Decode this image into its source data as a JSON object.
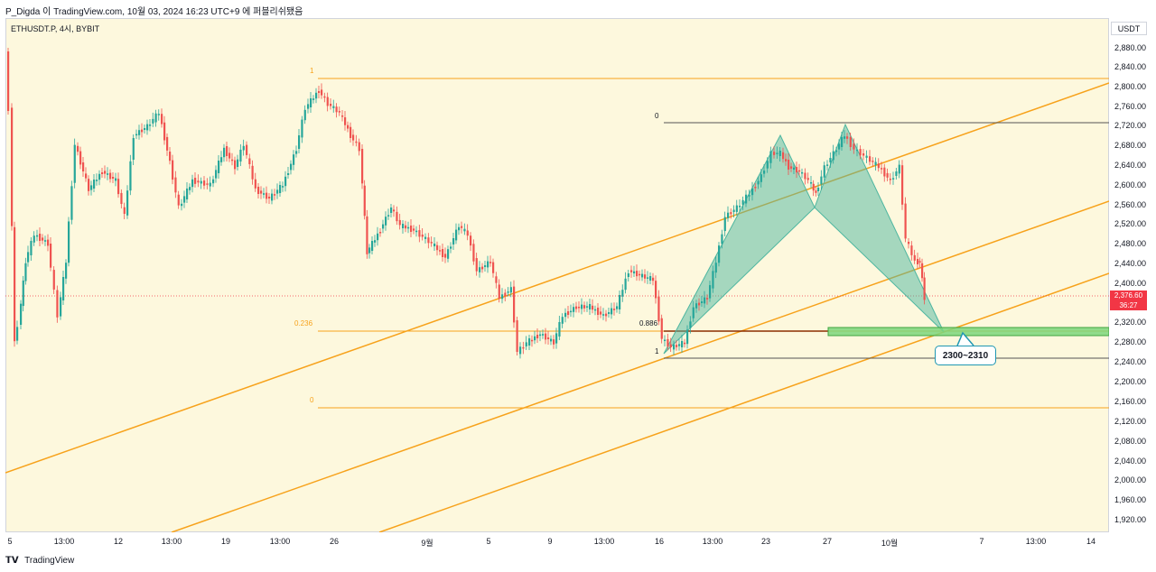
{
  "header": {
    "title": "P_Digda 이 TradingView.com, 10월 03, 2024 16:23 UTC+9 에 퍼블리쉬됐음"
  },
  "symbol": {
    "label": "ETHUSDT.P, 4시, BYBIT"
  },
  "price_axis": {
    "unit": "USDT",
    "labels": [
      "2,880.00",
      "2,840.00",
      "2,800.00",
      "2,760.00",
      "2,720.00",
      "2,680.00",
      "2,640.00",
      "2,600.00",
      "2,560.00",
      "2,520.00",
      "2,480.00",
      "2,440.00",
      "2,400.00",
      "2,320.00",
      "2,280.00",
      "2,240.00",
      "2,200.00",
      "2,160.00",
      "2,120.00",
      "2,080.00",
      "2,040.00",
      "2,000.00",
      "1,960.00",
      "1,920.00"
    ],
    "current_price": "2,376.60",
    "countdown": "36:27"
  },
  "time_axis": {
    "labels": [
      "5",
      "13:00",
      "12",
      "13:00",
      "19",
      "13:00",
      "26",
      "9월",
      "5",
      "9",
      "13:00",
      "16",
      "13:00",
      "23",
      "27",
      "10월",
      "7",
      "13:00",
      "14"
    ]
  },
  "fib_left": {
    "top": "1",
    "mid": "0.236",
    "bottom": "0"
  },
  "fib_right": {
    "top": "0",
    "mid": "0.886",
    "bottom": "1"
  },
  "annotation": {
    "zone": "2300~2310"
  },
  "footer": {
    "brand": "TradingView"
  },
  "colors": {
    "up": "#26a69a",
    "down": "#ef5350",
    "channel": "#f7a21b",
    "harmonic": "#4db6a0",
    "zone": "#7cd67c",
    "background": "#fdf8dd"
  }
}
